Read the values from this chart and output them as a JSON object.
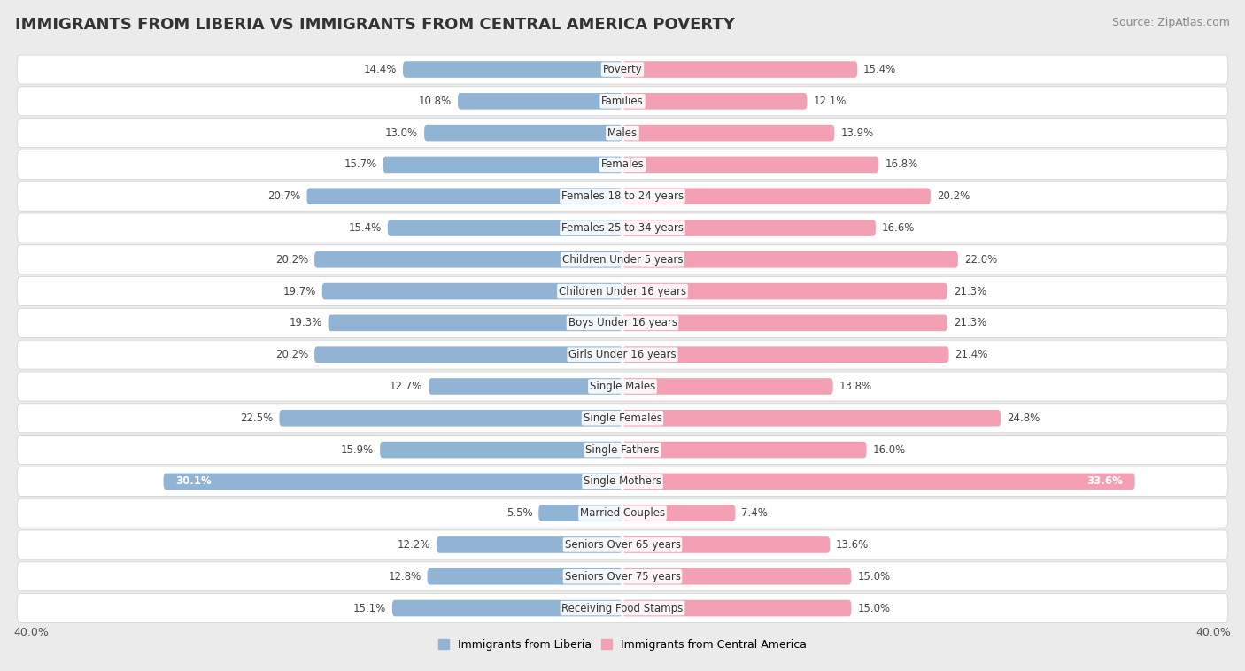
{
  "title": "IMMIGRANTS FROM LIBERIA VS IMMIGRANTS FROM CENTRAL AMERICA POVERTY",
  "source": "Source: ZipAtlas.com",
  "categories": [
    "Poverty",
    "Families",
    "Males",
    "Females",
    "Females 18 to 24 years",
    "Females 25 to 34 years",
    "Children Under 5 years",
    "Children Under 16 years",
    "Boys Under 16 years",
    "Girls Under 16 years",
    "Single Males",
    "Single Females",
    "Single Fathers",
    "Single Mothers",
    "Married Couples",
    "Seniors Over 65 years",
    "Seniors Over 75 years",
    "Receiving Food Stamps"
  ],
  "liberia_values": [
    14.4,
    10.8,
    13.0,
    15.7,
    20.7,
    15.4,
    20.2,
    19.7,
    19.3,
    20.2,
    12.7,
    22.5,
    15.9,
    30.1,
    5.5,
    12.2,
    12.8,
    15.1
  ],
  "central_america_values": [
    15.4,
    12.1,
    13.9,
    16.8,
    20.2,
    16.6,
    22.0,
    21.3,
    21.3,
    21.4,
    13.8,
    24.8,
    16.0,
    33.6,
    7.4,
    13.6,
    15.0,
    15.0
  ],
  "liberia_color": "#92b4d4",
  "central_america_color": "#f4a0b4",
  "liberia_label": "Immigrants from Liberia",
  "central_america_label": "Immigrants from Central America",
  "x_max": 40.0,
  "background_color": "#ebebeb",
  "row_bg_color": "#ffffff",
  "title_fontsize": 13,
  "source_fontsize": 9,
  "value_fontsize": 8.5,
  "category_fontsize": 8.5,
  "legend_fontsize": 9
}
